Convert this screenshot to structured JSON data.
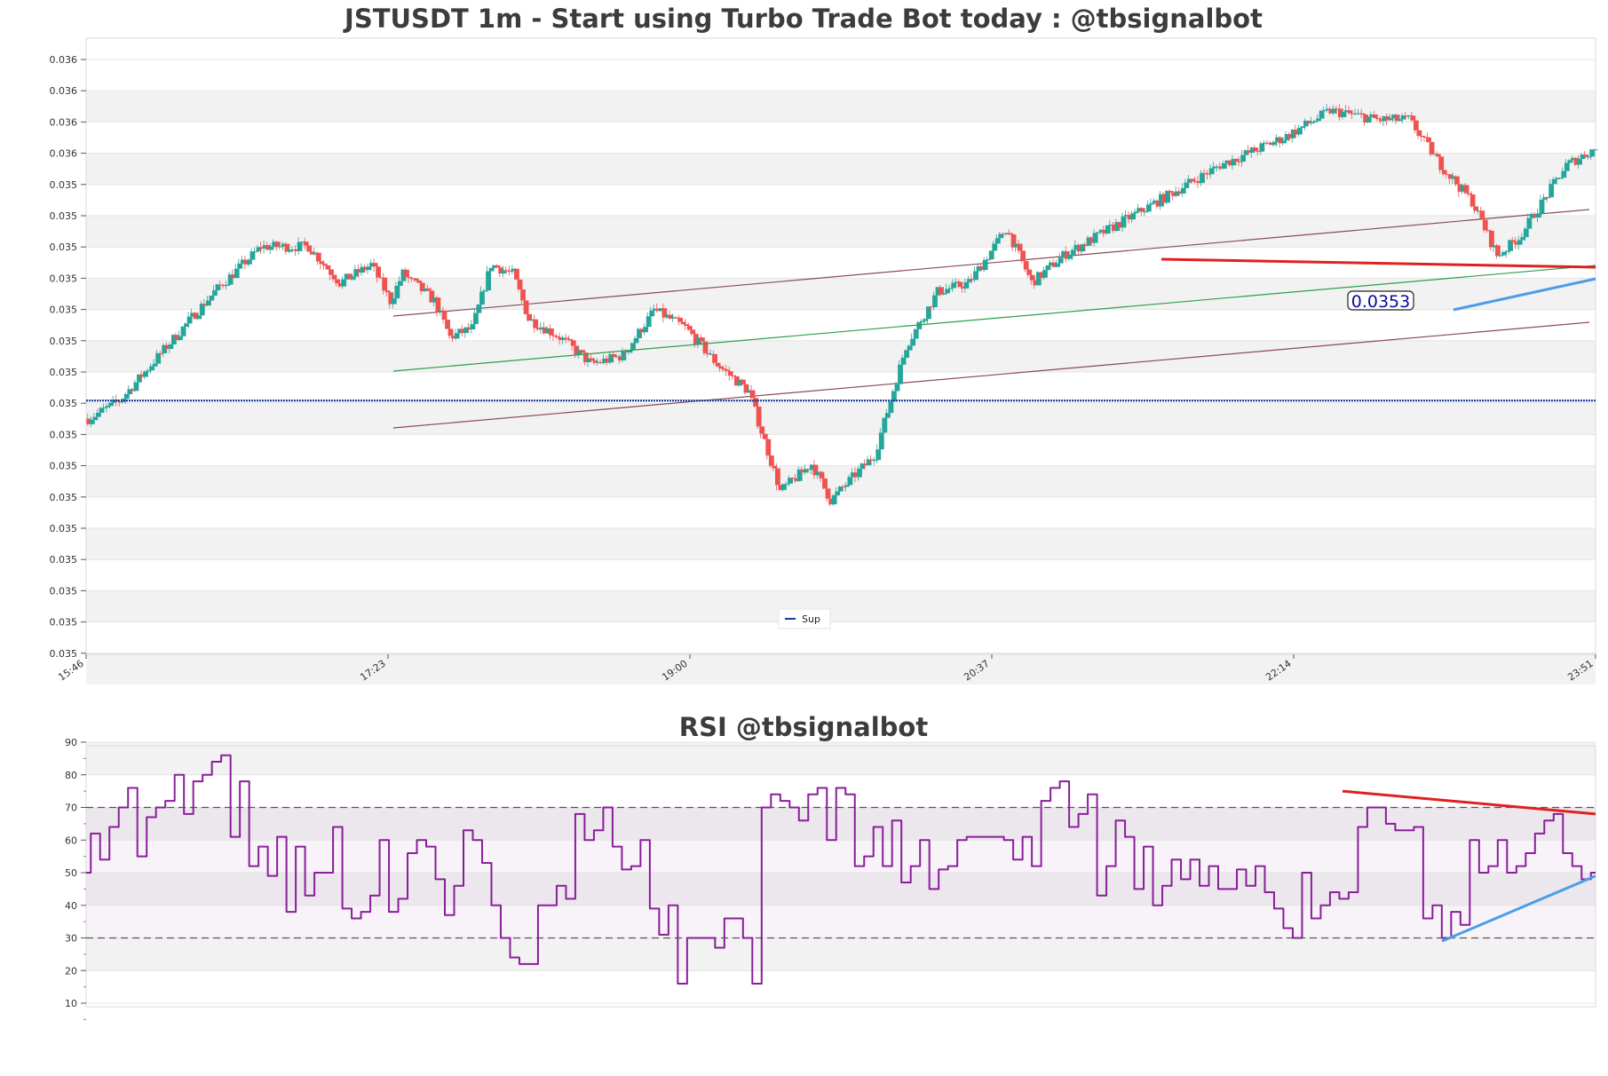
{
  "colors": {
    "up": "#26a69a",
    "down": "#ef5350",
    "support": "#1a3a9c",
    "channel": "#8b4a5a",
    "trend": "#2e9e4a",
    "resistance": "#e02020",
    "uptrend": "#4a9ee8",
    "rsi": "#8a1e9a",
    "band": "#f2f2f2"
  },
  "chart_data": [
    {
      "type": "candlestick",
      "title": "JSTUSDT 1m - Start using Turbo Trade Bot today : @tbsignalbot",
      "y_tick_labels": [
        "0.036",
        "0.036",
        "0.036",
        "0.036",
        "0.035",
        "0.035",
        "0.035",
        "0.035",
        "0.035",
        "0.035",
        "0.035",
        "0.035",
        "0.035",
        "0.035",
        "0.035",
        "0.035",
        "0.035",
        "0.035",
        "0.035",
        "0.035"
      ],
      "x_tick_labels": [
        "15:46",
        "17:23",
        "19:00",
        "20:37",
        "22:14",
        "23:51"
      ],
      "ylim": [
        0.03506,
        0.03574
      ],
      "support_level": 0.03534,
      "price_label": "0.0353",
      "legend": [
        {
          "name": "Sup",
          "color": "#1a3a9c"
        }
      ],
      "n_candles": 480,
      "close_path": [
        [
          0,
          0.03532
        ],
        [
          10,
          0.03534
        ],
        [
          25,
          0.0354
        ],
        [
          40,
          0.03546
        ],
        [
          55,
          0.03551
        ],
        [
          70,
          0.03551
        ],
        [
          80,
          0.03547
        ],
        [
          90,
          0.03549
        ],
        [
          96,
          0.03545
        ],
        [
          100,
          0.03548
        ],
        [
          110,
          0.03545
        ],
        [
          115,
          0.03541
        ],
        [
          122,
          0.03542
        ],
        [
          128,
          0.03549
        ],
        [
          135,
          0.03548
        ],
        [
          140,
          0.03543
        ],
        [
          150,
          0.03541
        ],
        [
          160,
          0.03538
        ],
        [
          170,
          0.03539
        ],
        [
          180,
          0.03544
        ],
        [
          190,
          0.03542
        ],
        [
          200,
          0.03538
        ],
        [
          210,
          0.03535
        ],
        [
          220,
          0.03524
        ],
        [
          230,
          0.03527
        ],
        [
          236,
          0.03523
        ],
        [
          250,
          0.03528
        ],
        [
          260,
          0.0354
        ],
        [
          270,
          0.03546
        ],
        [
          280,
          0.03547
        ],
        [
          292,
          0.03553
        ],
        [
          300,
          0.03547
        ],
        [
          310,
          0.0355
        ],
        [
          320,
          0.03552
        ],
        [
          340,
          0.03556
        ],
        [
          360,
          0.0356
        ],
        [
          380,
          0.03563
        ],
        [
          395,
          0.03566
        ],
        [
          410,
          0.03565
        ],
        [
          420,
          0.03565
        ],
        [
          430,
          0.0356
        ],
        [
          440,
          0.03556
        ],
        [
          448,
          0.0355
        ],
        [
          455,
          0.03552
        ],
        [
          470,
          0.0356
        ],
        [
          480,
          0.03562
        ]
      ]
    },
    {
      "type": "line",
      "title": "RSI @tbsignalbot",
      "y_tick_labels": [
        "90",
        "80",
        "70",
        "60",
        "50",
        "40",
        "30",
        "20",
        "10"
      ],
      "ylim": [
        10,
        90
      ],
      "overbought": 70,
      "oversold": 30,
      "series": [
        {
          "values": [
            50,
            62,
            54,
            64,
            70,
            76,
            55,
            67,
            70,
            72,
            80,
            68,
            78,
            80,
            84,
            86,
            61,
            78,
            52,
            58,
            49,
            61,
            38,
            58,
            43,
            50,
            50,
            64,
            39,
            36,
            38,
            43,
            60,
            38,
            42,
            56,
            60,
            58,
            48,
            37,
            46,
            63,
            60,
            53,
            40,
            30,
            24,
            22,
            22,
            40,
            40,
            46,
            42,
            68,
            60,
            63,
            70,
            58,
            51,
            52,
            60,
            39,
            31,
            40,
            16,
            30,
            30,
            30,
            27,
            36,
            36,
            30,
            16,
            70,
            74,
            72,
            70,
            66,
            74,
            76,
            60,
            76,
            74,
            52,
            55,
            64,
            52,
            66,
            47,
            52,
            60,
            45,
            51,
            52,
            60,
            61,
            61,
            61,
            61,
            60,
            54,
            61,
            52,
            72,
            76,
            78,
            64,
            68,
            74,
            43,
            52,
            66,
            61,
            45,
            58,
            40,
            46,
            54,
            48,
            54,
            46,
            52,
            45,
            45,
            51,
            46,
            52,
            44,
            39,
            33,
            30,
            50,
            36,
            40,
            44,
            42,
            44,
            64,
            70,
            70,
            65,
            63,
            63,
            64,
            36,
            40,
            30,
            38,
            34,
            60,
            50,
            52,
            60,
            50,
            52,
            56,
            62,
            66,
            68,
            56,
            52,
            48,
            50
          ],
          "color": "#8a1e9a"
        }
      ]
    }
  ]
}
